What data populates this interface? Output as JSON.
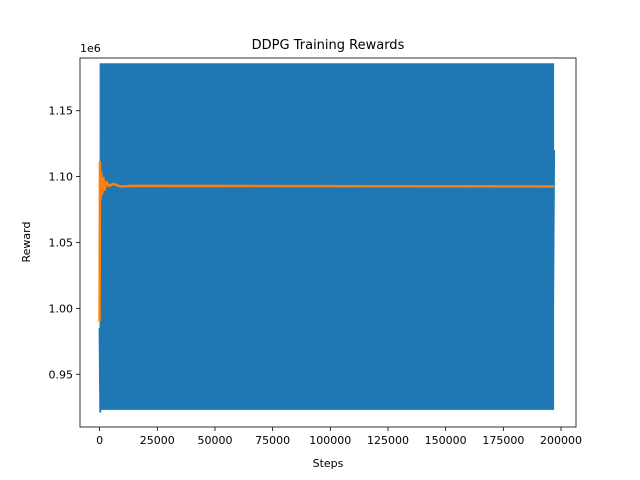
{
  "chart_data": {
    "type": "line",
    "title": "DDPG Training Rewards",
    "xlabel": "Steps",
    "ylabel": "Reward",
    "y_offset_label": "1e6",
    "xlim": [
      -8500,
      206500
    ],
    "ylim": [
      910000,
      1190000
    ],
    "xticks": [
      0,
      25000,
      50000,
      75000,
      100000,
      125000,
      150000,
      175000,
      200000
    ],
    "xtick_labels": [
      "0",
      "25000",
      "50000",
      "75000",
      "100000",
      "125000",
      "150000",
      "175000",
      "200000"
    ],
    "yticks": [
      950000,
      1000000,
      1050000,
      1100000,
      1150000
    ],
    "ytick_labels": [
      "0.95",
      "1.00",
      "1.05",
      "1.10",
      "1.15"
    ],
    "grid": false,
    "legend": "none",
    "series": [
      {
        "color": "#1f77b4",
        "x_range": [
          0,
          197000
        ],
        "band_min": 923000,
        "band_max": 1186000,
        "start_points": [
          [
            0,
            985000
          ],
          [
            300,
            921000
          ],
          [
            700,
            1183000
          ],
          [
            1200,
            925000
          ],
          [
            1800,
            1180000
          ]
        ],
        "end_points": [
          [
            196000,
            1180000
          ],
          [
            196500,
            990000
          ],
          [
            197000,
            1120000
          ]
        ]
      },
      {
        "color": "#ff7f0e",
        "points": [
          [
            0,
            990000
          ],
          [
            150,
            1111000
          ],
          [
            400,
            1083000
          ],
          [
            700,
            1103000
          ],
          [
            1100,
            1087000
          ],
          [
            1600,
            1099000
          ],
          [
            2200,
            1090000
          ],
          [
            3000,
            1096000
          ],
          [
            4000,
            1093000
          ],
          [
            6000,
            1094500
          ],
          [
            9000,
            1092500
          ],
          [
            15000,
            1093000
          ],
          [
            197000,
            1092500
          ]
        ]
      }
    ]
  }
}
